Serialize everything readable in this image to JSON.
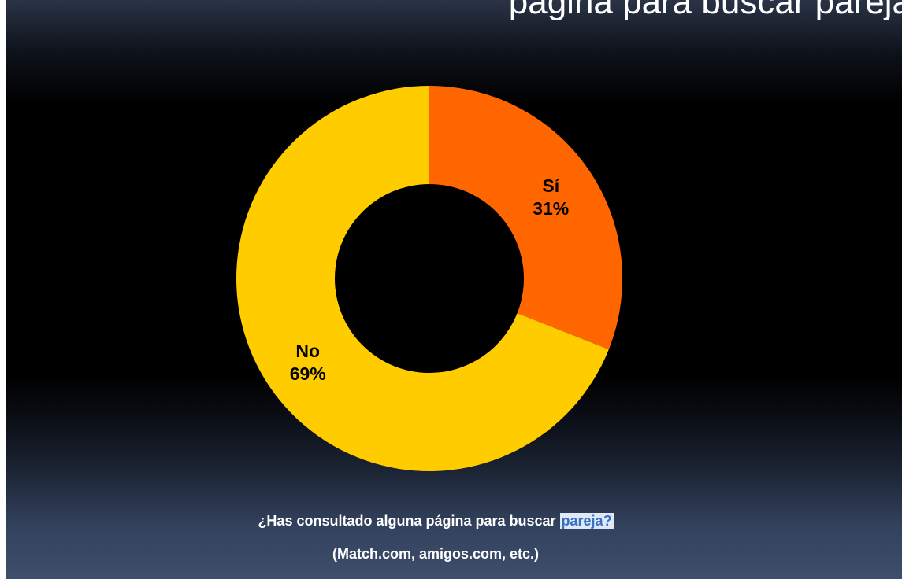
{
  "slide": {
    "title": "página para buscar pareja",
    "question_prefix": "¿Has consultado alguna página para buscar ",
    "question_highlight": "pareja?",
    "examples": "(Match.com, amigos.com, etc.)"
  },
  "chart_data": {
    "type": "pie",
    "variant": "donut",
    "title": "",
    "slices": [
      {
        "label": "Sí",
        "value": 31,
        "value_label": "31%",
        "color": "#ff6600"
      },
      {
        "label": "No",
        "value": 69,
        "value_label": "69%",
        "color": "#ffcc00"
      }
    ],
    "start_angle_deg": 0,
    "direction": "clockwise",
    "legend": "none"
  }
}
